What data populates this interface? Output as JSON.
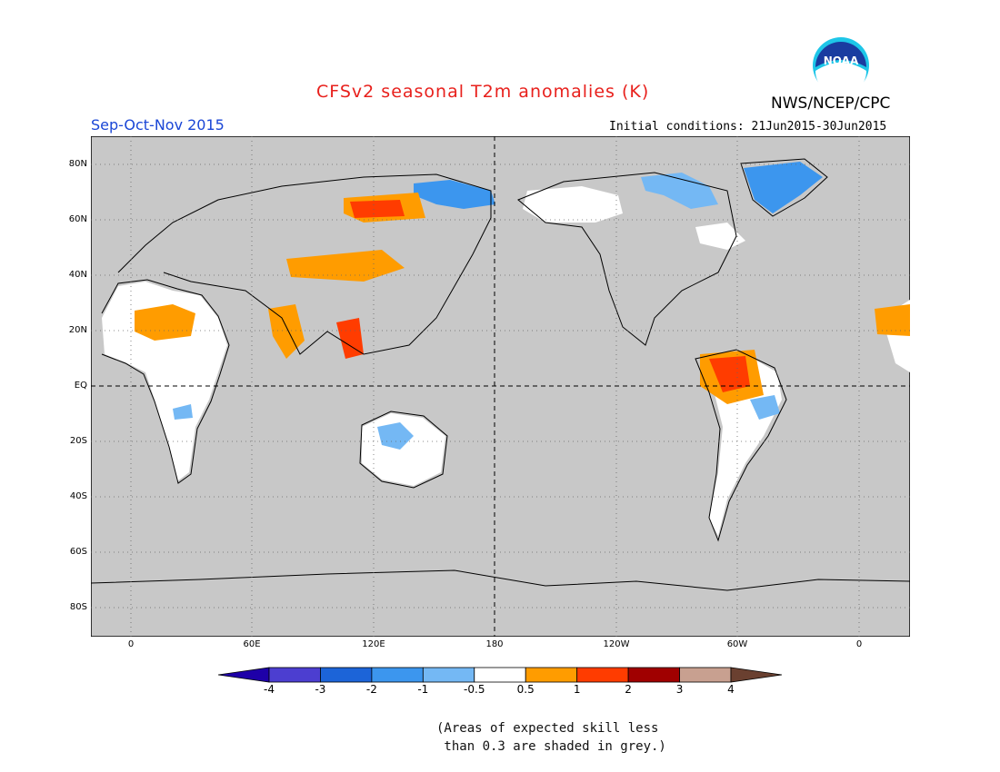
{
  "header": {
    "title": "CFSv2 seasonal T2m anomalies (K)",
    "agency": "NWS/NCEP/CPC",
    "season": "Sep-Oct-Nov 2015",
    "initial_conditions": "Initial conditions: 21Jun2015-30Jun2015"
  },
  "logo": {
    "icon": "noaa-logo-icon",
    "text": "NOAA"
  },
  "map": {
    "projection": "cylindrical-equidistant",
    "center_longitude": 180,
    "longitude_range": [
      -20,
      380
    ],
    "latitude_range": [
      -90,
      90
    ],
    "background_color": "#c8c8c8",
    "land_outline_color": "#000000",
    "lat_labels": [
      "80N",
      "60N",
      "40N",
      "20N",
      "EQ",
      "20S",
      "40S",
      "60S",
      "80S"
    ],
    "lon_labels": [
      "0",
      "60E",
      "120E",
      "180",
      "120W",
      "60W",
      "0"
    ],
    "reference_lines": [
      "equator",
      "dateline"
    ]
  },
  "colorbar": {
    "labels": [
      "-4",
      "-3",
      "-2",
      "-1",
      "-0.5",
      "0.5",
      "1",
      "2",
      "3",
      "4"
    ],
    "colors": [
      "#1e00a8",
      "#4c3ed0",
      "#1c64d8",
      "#3c96ee",
      "#74b8f4",
      "#ffffff",
      "#ff9c00",
      "#ff3c00",
      "#a00000",
      "#c8a090",
      "#6a4030"
    ]
  },
  "footnote": "(Areas of expected skill less\n than 0.3 are shaded in grey.)",
  "anomaly_regions": [
    {
      "name": "sahara",
      "level": "1"
    },
    {
      "name": "northern-siberia",
      "level": "1"
    },
    {
      "name": "arctic-siberia-coast",
      "level": "-1"
    },
    {
      "name": "central-asia",
      "level": "0.5"
    },
    {
      "name": "india",
      "level": "0.5"
    },
    {
      "name": "southeast-asia",
      "level": "1"
    },
    {
      "name": "australia",
      "level": "-0.5"
    },
    {
      "name": "northern-south-america",
      "level": "2"
    },
    {
      "name": "canadian-arctic",
      "level": "-1"
    },
    {
      "name": "greenland",
      "level": "-1"
    }
  ]
}
